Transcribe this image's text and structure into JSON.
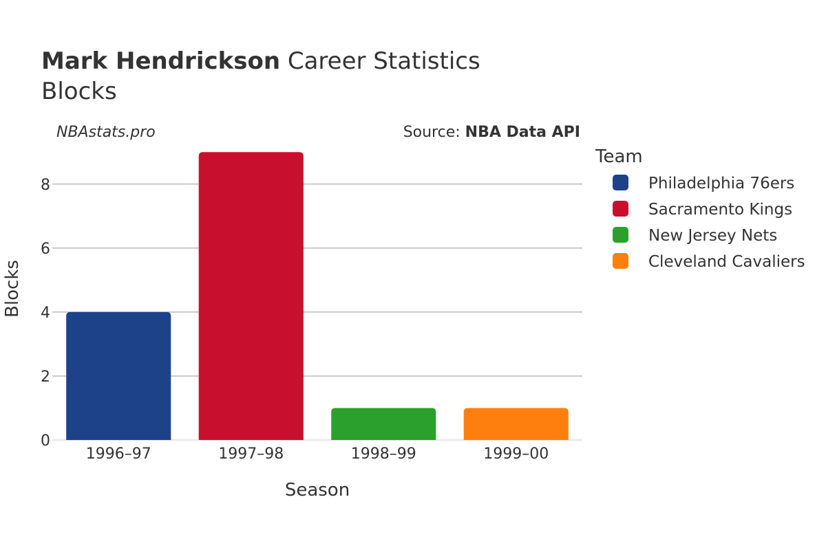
{
  "chart_data": {
    "type": "bar",
    "title_bold": "Mark Hendrickson",
    "title_rest": " Career Statistics",
    "subtitle": "Blocks",
    "watermark": "NBAstats.pro",
    "source_prefix": "Source: ",
    "source_name": "NBA Data API",
    "xlabel": "Season",
    "ylabel": "Blocks",
    "ylim": [
      0,
      9.5
    ],
    "yticks": [
      0,
      2,
      4,
      6,
      8
    ],
    "categories": [
      "1996–97",
      "1997–98",
      "1998–99",
      "1999–00"
    ],
    "values": [
      4,
      9,
      1,
      1
    ],
    "bar_teams": [
      "Philadelphia 76ers",
      "Sacramento Kings",
      "New Jersey Nets",
      "Cleveland Cavaliers"
    ],
    "legend": {
      "title": "Team",
      "placement": "right",
      "entries": [
        {
          "name": "Philadelphia 76ers",
          "color": "#1d428a"
        },
        {
          "name": "Sacramento Kings",
          "color": "#c8102e"
        },
        {
          "name": "New Jersey Nets",
          "color": "#2ca02c"
        },
        {
          "name": "Cleveland Cavaliers",
          "color": "#ff7f0e"
        }
      ]
    },
    "grid": true
  }
}
